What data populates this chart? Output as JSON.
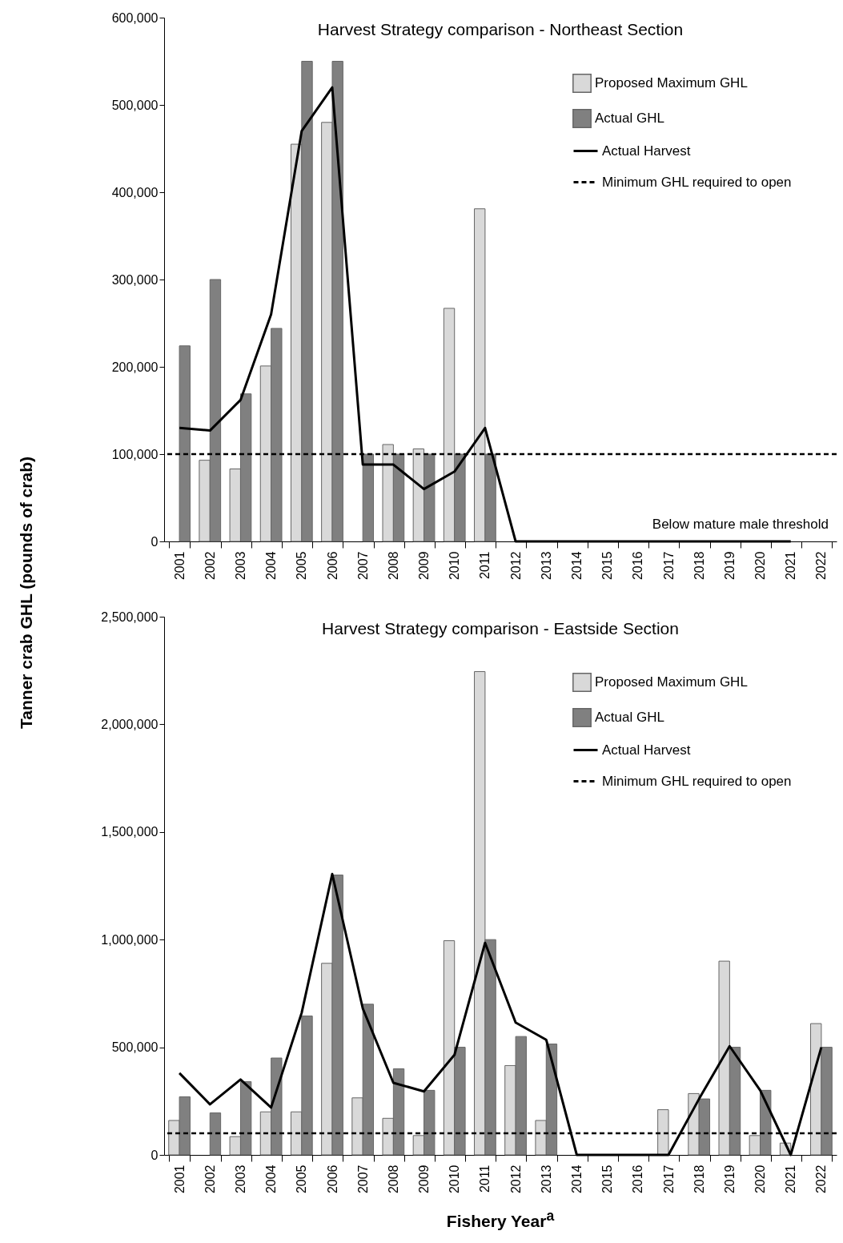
{
  "chart_data": [
    {
      "type": "bar",
      "title": "Harvest Strategy comparison - Northeast Section",
      "ylabel": "Tanner crab GHL (pounds of crab)",
      "categories": [
        "2001",
        "2002",
        "2003",
        "2004",
        "2005",
        "2006",
        "2007",
        "2008",
        "2009",
        "2010",
        "2011",
        "2012",
        "2013",
        "2014",
        "2015",
        "2016",
        "2017",
        "2018",
        "2019",
        "2020",
        "2021",
        "2022"
      ],
      "series": [
        {
          "name": "Proposed Maximum GHL",
          "color": "#d9d9d9",
          "values": [
            null,
            93000,
            83000,
            201000,
            455000,
            480000,
            null,
            111000,
            106000,
            267000,
            381000,
            null,
            null,
            null,
            null,
            null,
            null,
            null,
            null,
            null,
            null,
            null
          ]
        },
        {
          "name": "Actual GHL",
          "color": "#808080",
          "values": [
            224000,
            300000,
            169000,
            244000,
            550000,
            550000,
            100000,
            100000,
            100000,
            100000,
            100000,
            null,
            null,
            null,
            null,
            null,
            null,
            null,
            null,
            null,
            null,
            null
          ]
        },
        {
          "name": "Actual Harvest",
          "type": "line",
          "color": "#000000",
          "values": [
            130000,
            127000,
            162000,
            260000,
            470000,
            520000,
            88000,
            88000,
            60000,
            80000,
            130000,
            0,
            0,
            0,
            0,
            0,
            0,
            0,
            0,
            0,
            0,
            null
          ]
        }
      ],
      "ref_lines": [
        {
          "axis": "y",
          "value": 100000,
          "label": "Minimum GHL required to open",
          "color": "#000000",
          "line_style": "dashed"
        }
      ],
      "annotations": [
        "Below mature male threshold"
      ],
      "ylim": [
        0,
        600000
      ],
      "yticks": [
        0,
        {
          "value": 100000,
          "label": "100,000"
        },
        {
          "value": 200000,
          "label": "200,000"
        },
        {
          "value": 300000,
          "label": "300,000"
        },
        {
          "value": 400000,
          "label": "400,000"
        },
        {
          "value": 500000,
          "label": "500,000"
        },
        {
          "value": 600000,
          "label": "600,000"
        }
      ],
      "legend": "top right"
    },
    {
      "type": "bar",
      "title": "Harvest Strategy comparison - Eastside Section",
      "xlabel": "Fishery Year$^{a}$",
      "categories": [
        "2001",
        "2002",
        "2003",
        "2004",
        "2005",
        "2006",
        "2007",
        "2008",
        "2009",
        "2010",
        "2011",
        "2012",
        "2013",
        "2014",
        "2015",
        "2016",
        "2017",
        "2018",
        "2019",
        "2020",
        "2021",
        "2022"
      ],
      "series": [
        {
          "name": "Proposed Maximum GHL",
          "color": "#d9d9d9",
          "values": [
            160000,
            null,
            85000,
            200000,
            200000,
            890000,
            265000,
            170000,
            90000,
            995000,
            2245000,
            415000,
            160000,
            null,
            null,
            null,
            210000,
            285000,
            900000,
            90000,
            55000,
            610000
          ]
        },
        {
          "name": "Actual GHL",
          "color": "#808080",
          "values": [
            270000,
            195000,
            340000,
            450000,
            645000,
            1300000,
            700000,
            400000,
            300000,
            500000,
            1000000,
            550000,
            515000,
            null,
            null,
            null,
            null,
            260000,
            500000,
            300000,
            null,
            500000
          ]
        },
        {
          "name": "Actual Harvest",
          "type": "line",
          "color": "#000000",
          "values": [
            380000,
            235000,
            350000,
            220000,
            660000,
            1305000,
            680000,
            335000,
            295000,
            465000,
            985000,
            615000,
            535000,
            0,
            0,
            0,
            0,
            260000,
            505000,
            300000,
            0,
            500000
          ]
        }
      ],
      "ref_lines": [
        {
          "axis": "y",
          "value": 100000,
          "label": "Minimum GHL required to open",
          "color": "#000000",
          "line_style": "dashed"
        }
      ],
      "ylim": [
        0,
        2500000
      ],
      "yticks": [
        0,
        {
          "value": 500000,
          "label": "500,000"
        },
        {
          "value": 1000000,
          "label": "1,000,000"
        },
        {
          "value": 1500000,
          "label": "1,500,000"
        },
        {
          "value": 2000000,
          "label": "2,000,000"
        },
        {
          "value": 2500000,
          "label": "2,500,000"
        }
      ],
      "legend": "top right"
    }
  ]
}
